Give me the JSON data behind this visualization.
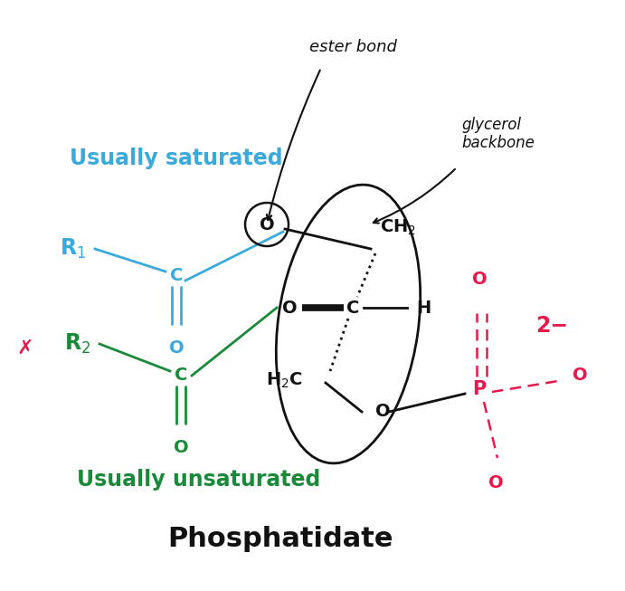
{
  "title": "Phosphatidate",
  "usually_saturated": "Usually saturated",
  "usually_unsaturated": "Usually unsaturated",
  "ester_bond_label": "ester bond",
  "glycerol_backbone_label": "glycerol\nbackbone",
  "charge_label": "2−",
  "bg_color": "#ffffff",
  "blue_color": "#3aaadd",
  "green_color": "#1a8a3a",
  "red_color": "#e8184a",
  "black_color": "#111111"
}
